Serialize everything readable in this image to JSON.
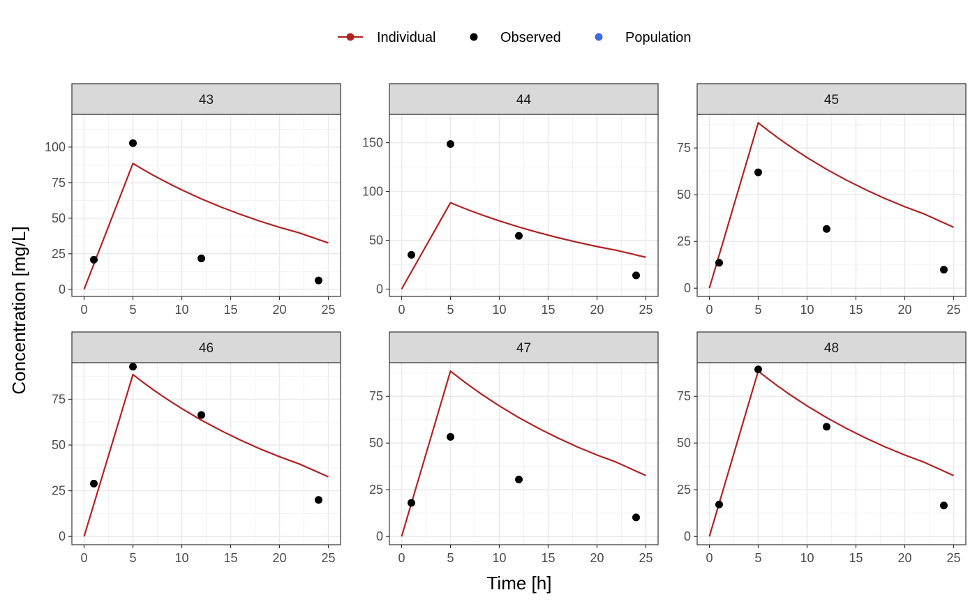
{
  "chart_data": {
    "type": "line",
    "xlabel": "Time [h]",
    "ylabel": "Concentration [mg/L]",
    "legend": {
      "position": "top",
      "entries": [
        {
          "key": "individual",
          "label": "Individual",
          "color": "#b22222",
          "mark": "line+point"
        },
        {
          "key": "observed",
          "label": "Observed",
          "color": "#000000",
          "mark": "point"
        },
        {
          "key": "population",
          "label": "Population",
          "color": "#4169e1",
          "mark": "point"
        }
      ]
    },
    "grid": true,
    "xlim": [
      -1.25,
      26.25
    ],
    "xticks": [
      0,
      5,
      10,
      15,
      20,
      25
    ],
    "individual_x": [
      0,
      5,
      6,
      7,
      8,
      9,
      10,
      12,
      14,
      16,
      18,
      20,
      22,
      25
    ],
    "individual_y": [
      0,
      88.5,
      84.4,
      80.5,
      76.8,
      73.3,
      69.9,
      63.6,
      57.9,
      52.7,
      47.9,
      43.6,
      39.7,
      32.6
    ],
    "panels": [
      {
        "id": "43",
        "ylim": [
          -5,
          123
        ],
        "yticks": [
          0,
          25,
          50,
          75,
          100
        ],
        "observed": {
          "x": [
            1,
            5,
            12,
            24
          ],
          "y": [
            20.8,
            102.8,
            21.7,
            6.2
          ]
        }
      },
      {
        "id": "44",
        "ylim": [
          -7.5,
          179
        ],
        "yticks": [
          0,
          50,
          100,
          150
        ],
        "observed": {
          "x": [
            1,
            5,
            12,
            24
          ],
          "y": [
            35.1,
            148.6,
            54.6,
            14.0
          ]
        }
      },
      {
        "id": "45",
        "ylim": [
          -4.4,
          93
        ],
        "yticks": [
          0,
          25,
          50,
          75
        ],
        "observed": {
          "x": [
            1,
            5,
            12,
            24
          ],
          "y": [
            13.6,
            62.0,
            31.7,
            9.9
          ]
        }
      },
      {
        "id": "46",
        "ylim": [
          -4.5,
          95
        ],
        "yticks": [
          0,
          25,
          50,
          75
        ],
        "observed": {
          "x": [
            1,
            5,
            12,
            24
          ],
          "y": [
            28.9,
            92.8,
            66.4,
            20.0
          ]
        }
      },
      {
        "id": "47",
        "ylim": [
          -4.4,
          93
        ],
        "yticks": [
          0,
          25,
          50,
          75
        ],
        "observed": {
          "x": [
            1,
            5,
            12,
            24
          ],
          "y": [
            18.0,
            53.3,
            30.5,
            10.2
          ]
        }
      },
      {
        "id": "48",
        "ylim": [
          -4.4,
          93
        ],
        "yticks": [
          0,
          25,
          50,
          75
        ],
        "observed": {
          "x": [
            1,
            5,
            12,
            24
          ],
          "y": [
            17.1,
            89.4,
            58.7,
            16.6
          ]
        }
      }
    ]
  }
}
